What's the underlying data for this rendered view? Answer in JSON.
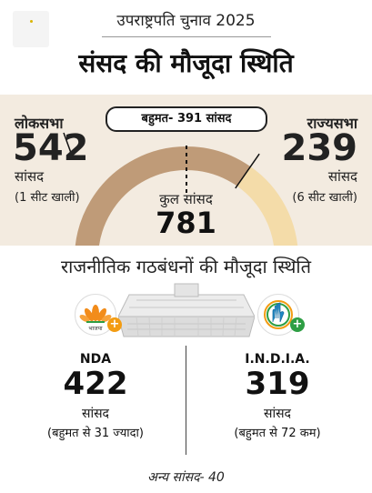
{
  "header": {
    "kicker": "उपराष्ट्रपति चुनाव 2025",
    "title": "संसद की मौजूदा स्थिति"
  },
  "majority": {
    "label": "बहुमत- 391 सांसद"
  },
  "lok_sabha": {
    "title": "लोकसभा",
    "count": "542",
    "unit": "सांसद",
    "note": "(1 सीट खाली)"
  },
  "rajya_sabha": {
    "title": "राज्यसभा",
    "count": "239",
    "unit": "सांसद",
    "note": "(6 सीट खाली)"
  },
  "total": {
    "label": "कुल सांसद",
    "count": "781"
  },
  "gauge": {
    "lok_sabha_value": 542,
    "rajya_sabha_value": 239,
    "total_value": 781,
    "majority_value": 391,
    "colors": {
      "lok_sabha": "#bf9b78",
      "rajya_sabha": "#f4dca9"
    }
  },
  "alliances": {
    "title": "राजनीतिक गठबंधनों की मौजूदा स्थिति",
    "nda": {
      "name": "NDA",
      "count": "422",
      "unit": "सांसद",
      "note": "(बहुमत से 31 ज्यादा)",
      "logo_icon": "bjp-lotus-icon",
      "logo_text": "भाजपा"
    },
    "india": {
      "name": "I.N.D.I.A.",
      "count": "319",
      "unit": "सांसद",
      "note": "(बहुमत से 72 कम)",
      "logo_icon": "congress-hand-icon"
    },
    "others": "अन्य सांसद- 40"
  },
  "colors": {
    "plus_orange": "#f39c12",
    "plus_green": "#2e9e44",
    "beige_bg": "#f3ebe0"
  }
}
